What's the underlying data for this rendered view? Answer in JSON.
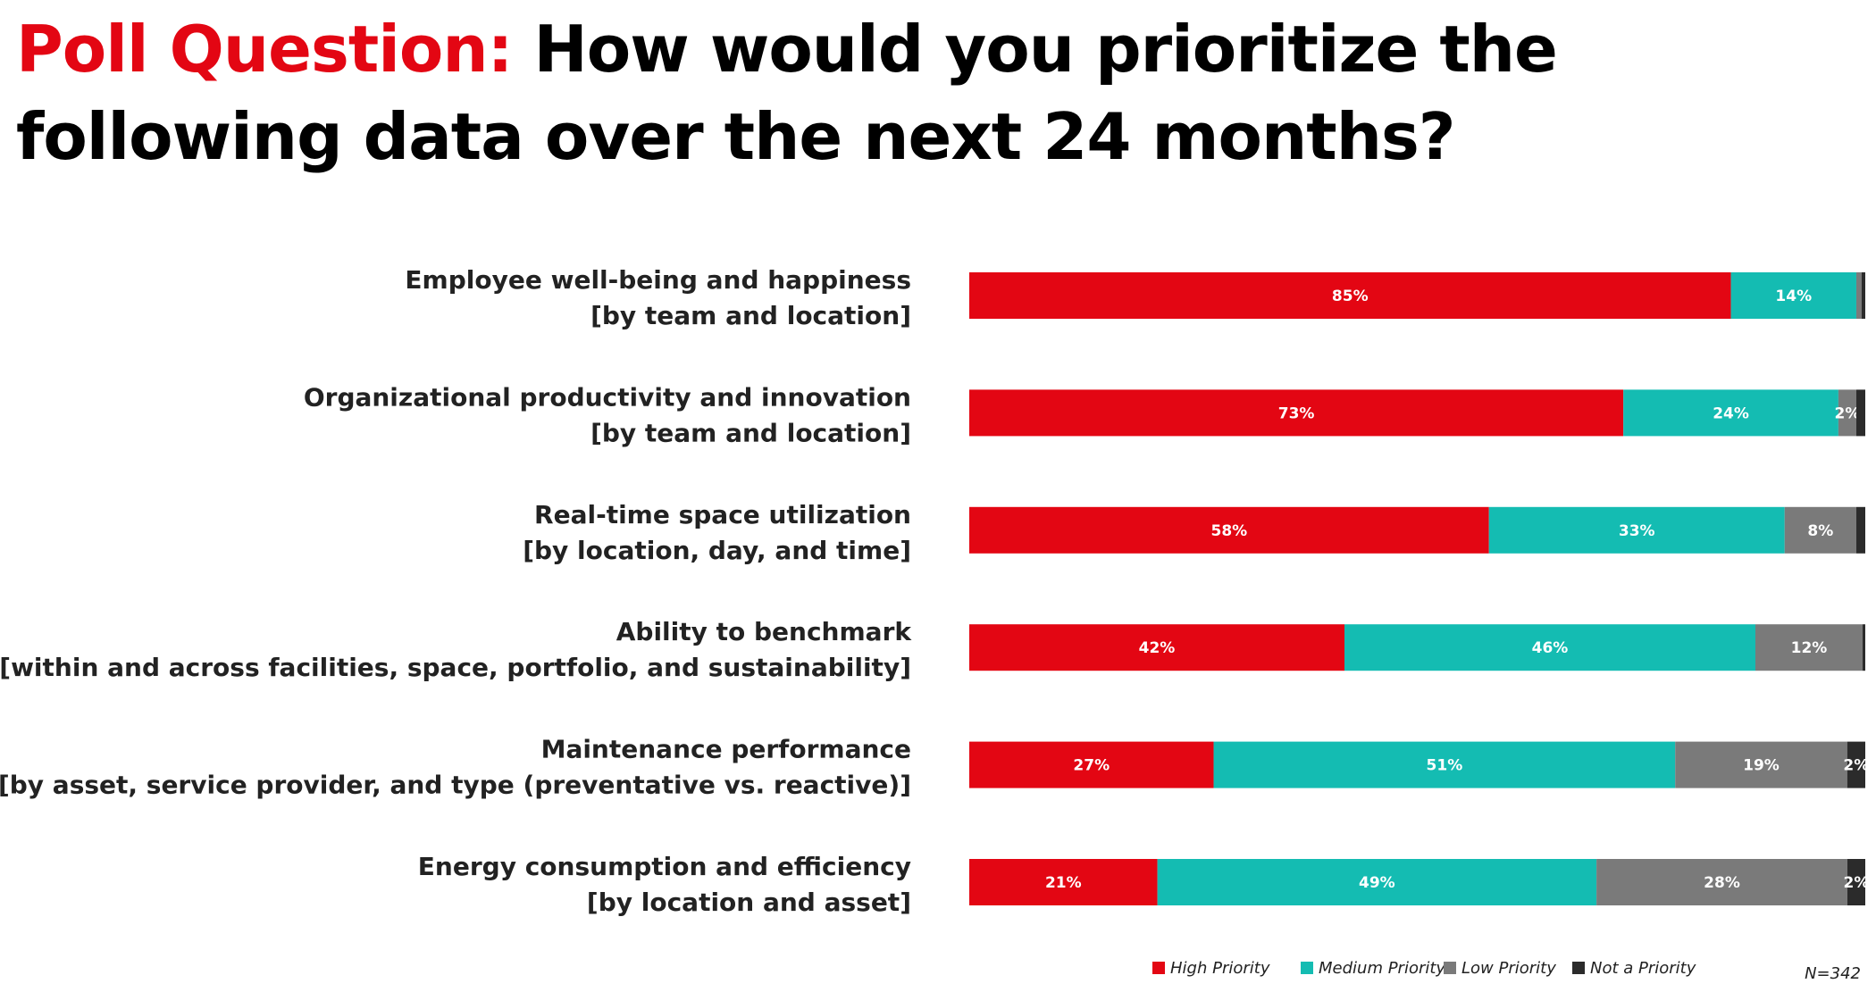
{
  "title": {
    "prefix": "Poll Question:",
    "text": "How would you prioritize the following data over the next 24 months?"
  },
  "note": "N=342",
  "colors": {
    "high": "#e30613",
    "medium": "#14bcb2",
    "low": "#7a7a7a",
    "not": "#2b2b2b"
  },
  "chart_data": {
    "type": "bar",
    "orientation": "horizontal",
    "stacked": true,
    "xlim": [
      0,
      100
    ],
    "categories": [
      [
        "Employee well-being and happiness",
        "[by team and location]"
      ],
      [
        "Organizational productivity and innovation",
        "[by team and location]"
      ],
      [
        "Real-time space utilization",
        "[by location, day, and time]"
      ],
      [
        "Ability to benchmark",
        "[within and across facilities, space, portfolio, and sustainability]"
      ],
      [
        "Maintenance performance",
        "[by asset, service provider, and type (preventative vs. reactive)]"
      ],
      [
        "Energy consumption and efficiency",
        "[by location and asset]"
      ]
    ],
    "series": [
      {
        "name": "High Priority",
        "color": "#e30613",
        "values": [
          85,
          73,
          58,
          42,
          27,
          21
        ],
        "labels": [
          "85%",
          "73%",
          "58%",
          "42%",
          "27%",
          "21%"
        ]
      },
      {
        "name": "Medium Priority",
        "color": "#14bcb2",
        "values": [
          14,
          24,
          33,
          46,
          51,
          49
        ],
        "labels": [
          "14%",
          "24%",
          "33%",
          "46%",
          "51%",
          "49%"
        ]
      },
      {
        "name": "Low Priority",
        "color": "#7a7a7a",
        "values": [
          0.6,
          2,
          8,
          12,
          19,
          28
        ],
        "labels": [
          "",
          "2%",
          "8%",
          "12%",
          "19%",
          "28%"
        ]
      },
      {
        "name": "Not a Priority",
        "color": "#2b2b2b",
        "values": [
          0.4,
          1,
          1,
          0.3,
          2,
          2
        ],
        "labels": [
          "",
          "",
          "",
          "",
          "2%",
          "2%"
        ]
      }
    ],
    "legend": "bottom-right"
  }
}
